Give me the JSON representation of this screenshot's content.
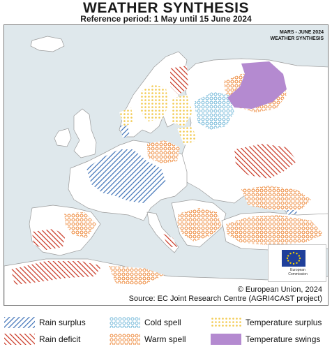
{
  "header": {
    "title": "WEATHER SYNTHESIS",
    "subtitle": "Reference period: 1 May until 15 June 2024"
  },
  "map": {
    "corner_line1": "MARS - JUNE 2024",
    "corner_line2": "WEATHER SYNTHESIS",
    "copyright": "© European Union, 2024",
    "source": "Source: EC Joint Research Centre (AGRI4CAST project)",
    "logo_text_line1": "European",
    "logo_text_line2": "Commission"
  },
  "legend": {
    "items": [
      {
        "label": "Rain surplus",
        "pattern": "hatch-blue",
        "color": "#3b6fb6"
      },
      {
        "label": "Rain deficit",
        "pattern": "hatch-red",
        "color": "#c8321e"
      },
      {
        "label": "Cold spell",
        "pattern": "circles-blue",
        "color": "#6fb6d8"
      },
      {
        "label": "Warm spell",
        "pattern": "circles-orange",
        "color": "#ee8a3c"
      },
      {
        "label": "Temperature surplus",
        "pattern": "dots-yellow",
        "color": "#f2c94c"
      },
      {
        "label": "Temperature swings",
        "pattern": "solid-purple",
        "color": "#b48ad0"
      }
    ]
  },
  "colors": {
    "land": "#ffffff",
    "sea": "#dfe8ec",
    "border": "#9a9a9a"
  }
}
